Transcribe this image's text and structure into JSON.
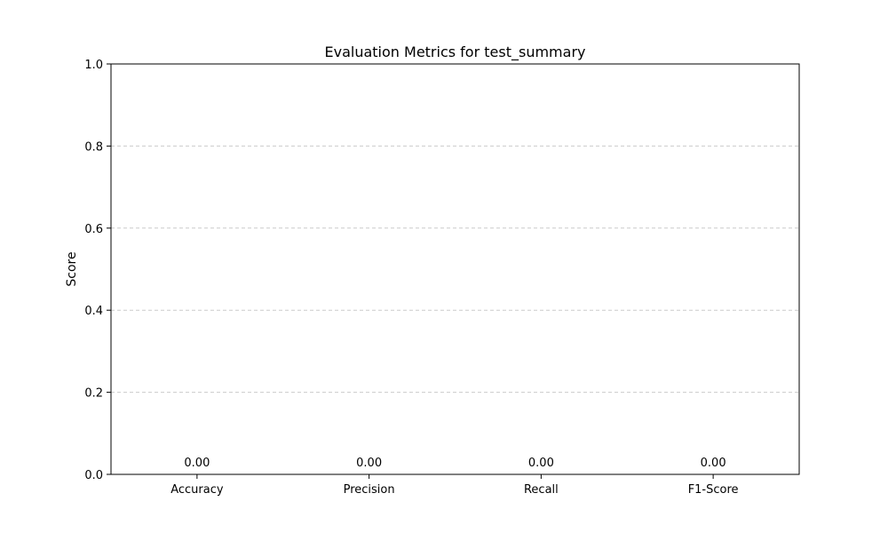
{
  "chart_data": {
    "type": "bar",
    "title": "Evaluation Metrics for test_summary",
    "xlabel": "",
    "ylabel": "Score",
    "categories": [
      "Accuracy",
      "Precision",
      "Recall",
      "F1-Score"
    ],
    "values": [
      0.0,
      0.0,
      0.0,
      0.0
    ],
    "value_labels": [
      "0.00",
      "0.00",
      "0.00",
      "0.00"
    ],
    "ylim": [
      0,
      1.0
    ],
    "yticks": [
      0.0,
      0.2,
      0.4,
      0.6,
      0.8,
      1.0
    ],
    "ytick_labels": [
      "0.0",
      "0.2",
      "0.4",
      "0.6",
      "0.8",
      "1.0"
    ],
    "grid": {
      "axis": "y",
      "style": "dashed",
      "color": "#cccccc"
    },
    "bar_color": "#1f77b4"
  }
}
